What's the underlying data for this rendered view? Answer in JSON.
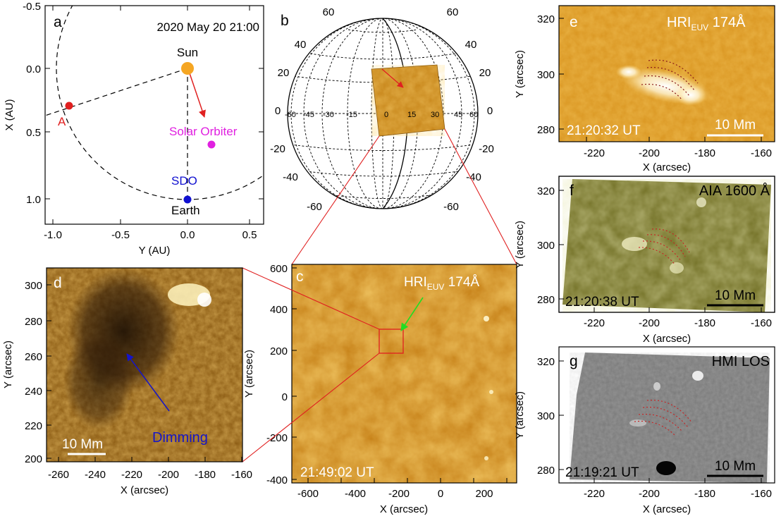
{
  "figure": {
    "panel_a": {
      "letter": "a",
      "date": "2020 May 20 21:00",
      "bodies": [
        {
          "label": "Sun",
          "x_au": 0.0,
          "y_au": 0.0,
          "color": "#F5A623"
        },
        {
          "label": "A",
          "x_au": 0.28,
          "y_au": -0.92,
          "color": "#E02020"
        },
        {
          "label": "Solar Orbiter",
          "x_au": 0.58,
          "y_au": 0.18,
          "color": "#E020E0"
        },
        {
          "label": "SDO",
          "x_au": 1.0,
          "y_au": 0.0,
          "color": "#1010D0"
        },
        {
          "label": "Earth",
          "x_au": 1.0,
          "y_au": 0.0,
          "color": "#000000"
        }
      ],
      "xlabel": "Y (AU)",
      "ylabel": "X (AU)",
      "xticks": [
        "-1.0",
        "-0.5",
        "0.0",
        "0.5"
      ],
      "yticks": [
        "-0.5",
        "0.0",
        "0.5",
        "1.0"
      ]
    },
    "panel_b": {
      "letter": "b",
      "lon_labels": [
        "-60",
        "-45",
        "-30",
        "-15",
        "0",
        "15",
        "30",
        "45",
        "60"
      ],
      "lat_labels_left": [
        "60",
        "40",
        "20",
        "0",
        "-20",
        "-40",
        "-60"
      ],
      "lat_labels_right": [
        "60",
        "40",
        "20",
        "0",
        "-20",
        "-40",
        "-60"
      ]
    },
    "panel_c": {
      "letter": "c",
      "instrument": "HRI",
      "instrument_sub": "EUV",
      "wavelength": " 174Å",
      "time": "21:49:02 UT",
      "xlabel": "X (arcsec)",
      "ylabel": "Y (arcsec)",
      "xticks": [
        "-600",
        "-400",
        "-200",
        "0",
        "200"
      ],
      "yticks": [
        "600",
        "400",
        "200",
        "0",
        "-200",
        "-400"
      ]
    },
    "panel_d": {
      "letter": "d",
      "scale": "10 Mm",
      "annotation": "Dimming",
      "xlabel": "X (arcsec)",
      "ylabel": "Y (arcsec)",
      "xticks": [
        "-260",
        "-240",
        "-220",
        "-200",
        "-180",
        "-160"
      ],
      "yticks": [
        "300",
        "280",
        "260",
        "240",
        "220",
        "200"
      ]
    },
    "panel_e": {
      "letter": "e",
      "instrument": "HRI",
      "instrument_sub": "EUV",
      "wavelength": " 174Å",
      "time": "21:20:32 UT",
      "scale": "10 Mm",
      "xlabel": "X (arcsec)",
      "ylabel": "Y (arcsec)",
      "xticks": [
        "-220",
        "-200",
        "-180",
        "-160"
      ],
      "yticks": [
        "320",
        "300",
        "280"
      ]
    },
    "panel_f": {
      "letter": "f",
      "instrument": "AIA 1600 Å",
      "time": "21:20:38 UT",
      "scale": "10 Mm",
      "xlabel": "X (arcsec)",
      "ylabel": "Y (arcsec)",
      "xticks": [
        "-220",
        "-200",
        "-180",
        "-160"
      ],
      "yticks": [
        "320",
        "300",
        "280"
      ]
    },
    "panel_g": {
      "letter": "g",
      "instrument": "HMI LOS",
      "time": "21:19:21 UT",
      "scale": "10 Mm",
      "xlabel": "X (arcsec)",
      "ylabel": "Y (arcsec)",
      "xticks": [
        "-220",
        "-200",
        "-180",
        "-160"
      ],
      "yticks": [
        "320",
        "300",
        "280"
      ]
    }
  }
}
